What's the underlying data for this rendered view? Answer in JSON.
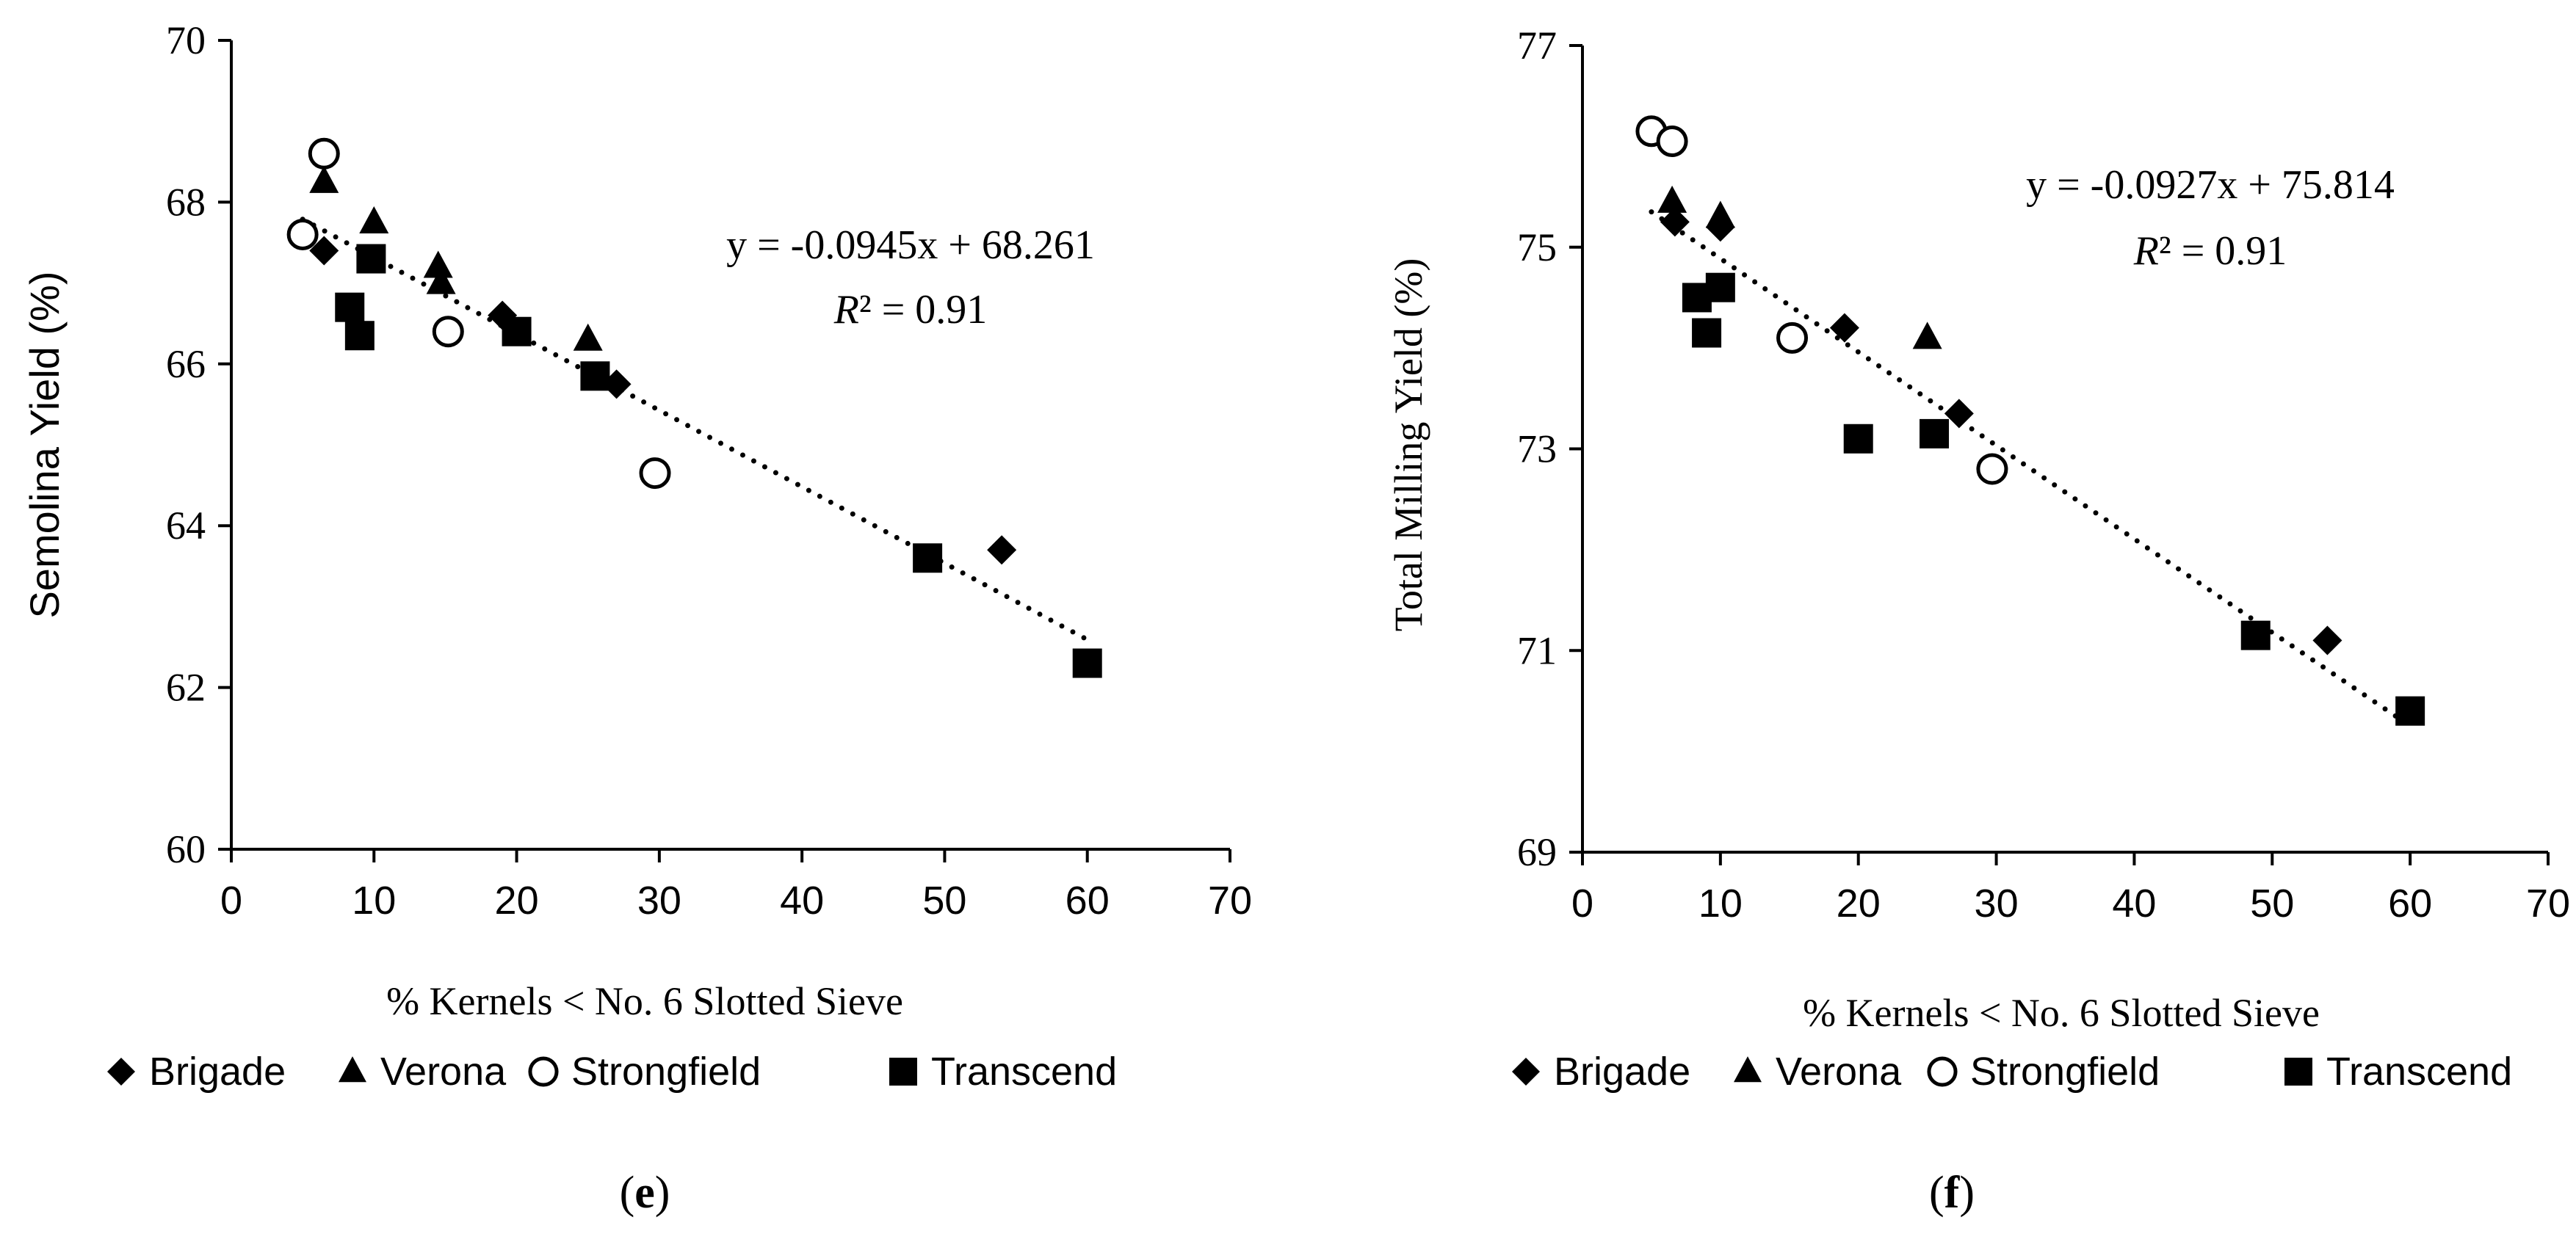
{
  "colors": {
    "ink": "#000000",
    "paper": "#ffffff"
  },
  "chart_data": [
    {
      "panel": "(e)",
      "panel_letter": "e",
      "type": "scatter",
      "title": "",
      "xlabel": "% Kernels < No. 6 Slotted Sieve",
      "ylabel": "Semolina Yield (%)",
      "xlim": [
        0,
        70
      ],
      "ylim": [
        60,
        70
      ],
      "xticks": [
        0,
        10,
        20,
        30,
        40,
        50,
        60,
        70
      ],
      "yticks": [
        60,
        62,
        64,
        66,
        68,
        70
      ],
      "grid": false,
      "legend": "bottom",
      "equation": "y = -0.0945x + 68.261",
      "r2_label": "R",
      "r2_value": "² = 0.91",
      "trendline": {
        "slope": -0.0945,
        "intercept": 68.261,
        "x_range": [
          5,
          60
        ]
      },
      "series": [
        {
          "name": "Brigade",
          "marker": "diamond",
          "points": [
            [
              6.5,
              67.4
            ],
            [
              19,
              66.6
            ],
            [
              27,
              65.75
            ],
            [
              54,
              63.7
            ]
          ]
        },
        {
          "name": "Verona",
          "marker": "triangle",
          "points": [
            [
              6.5,
              68.25
            ],
            [
              10,
              67.75
            ],
            [
              14.5,
              67.2
            ],
            [
              14.7,
              67.0
            ],
            [
              25,
              66.3
            ]
          ]
        },
        {
          "name": "Strongfield",
          "marker": "circle",
          "points": [
            [
              5,
              67.6
            ],
            [
              6.5,
              68.6
            ],
            [
              15.2,
              66.4
            ],
            [
              29.7,
              64.65
            ]
          ]
        },
        {
          "name": "Transcend",
          "marker": "square",
          "points": [
            [
              8.3,
              66.7
            ],
            [
              9,
              66.35
            ],
            [
              9.8,
              67.3
            ],
            [
              20,
              66.4
            ],
            [
              25.5,
              65.85
            ],
            [
              48.8,
              63.6
            ],
            [
              60,
              62.3
            ]
          ]
        }
      ]
    },
    {
      "panel": "(f)",
      "panel_letter": "f",
      "type": "scatter",
      "title": "",
      "xlabel": "% Kernels < No. 6 Slotted Sieve",
      "ylabel": "Total Milling Yield (%)",
      "xlim": [
        0,
        70
      ],
      "ylim": [
        69,
        77
      ],
      "xticks": [
        0,
        10,
        20,
        30,
        40,
        50,
        60,
        70
      ],
      "yticks": [
        69,
        71,
        73,
        75,
        77
      ],
      "grid": false,
      "legend": "bottom",
      "equation": "y = -0.0927x + 75.814",
      "r2_label": "R",
      "r2_value": "² = 0.91",
      "trendline": {
        "slope": -0.0927,
        "intercept": 75.814,
        "x_range": [
          5,
          60
        ]
      },
      "series": [
        {
          "name": "Brigade",
          "marker": "diamond",
          "points": [
            [
              6.7,
              75.25
            ],
            [
              10,
              75.2
            ],
            [
              19,
              74.2
            ],
            [
              27.3,
              73.35
            ],
            [
              54,
              71.1
            ]
          ]
        },
        {
          "name": "Verona",
          "marker": "triangle",
          "points": [
            [
              6.5,
              75.45
            ],
            [
              10,
              75.3
            ],
            [
              25,
              74.1
            ]
          ]
        },
        {
          "name": "Strongfield",
          "marker": "circle",
          "points": [
            [
              5,
              76.15
            ],
            [
              6.5,
              76.05
            ],
            [
              15.2,
              74.1
            ],
            [
              29.7,
              72.8
            ]
          ]
        },
        {
          "name": "Transcend",
          "marker": "square",
          "points": [
            [
              8.3,
              74.5
            ],
            [
              9,
              74.15
            ],
            [
              10,
              74.6
            ],
            [
              20,
              73.1
            ],
            [
              25.5,
              73.15
            ],
            [
              48.8,
              71.15
            ],
            [
              60,
              70.4
            ]
          ]
        }
      ]
    }
  ]
}
